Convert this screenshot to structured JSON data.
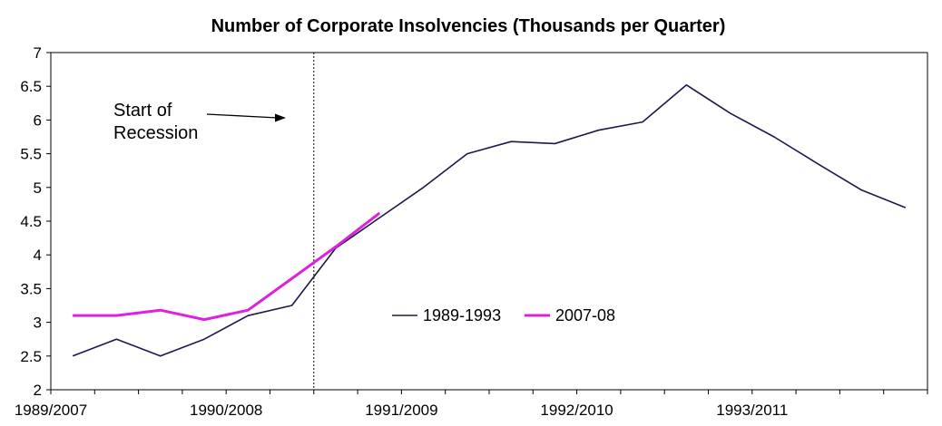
{
  "chart_data": {
    "type": "line",
    "title": "Number of Corporate Insolvencies (Thousands per Quarter)",
    "xlabel": "",
    "ylabel": "",
    "ylim": [
      2,
      7
    ],
    "yticks": [
      "2",
      "2.5",
      "3",
      "3.5",
      "4",
      "4.5",
      "5",
      "5.5",
      "6",
      "6.5",
      "7"
    ],
    "xtick_labels": [
      "1989/2007",
      "1990/2008",
      "1991/2009",
      "1992/2010",
      "1993/2011"
    ],
    "quarters": 20,
    "grid": false,
    "legend_position": "center",
    "annotation": {
      "lines": [
        "Start of",
        "Recession"
      ],
      "marker_quarter": 5.5
    },
    "series": [
      {
        "name": "1989-1993",
        "color": "#1a1a4d",
        "values": [
          2.5,
          2.75,
          2.5,
          2.75,
          3.1,
          3.25,
          4.1,
          4.55,
          5.0,
          5.5,
          5.68,
          5.65,
          5.85,
          5.97,
          6.52,
          6.1,
          5.75,
          5.35,
          4.96,
          4.7
        ]
      },
      {
        "name": "2007-08",
        "color": "#e020e0",
        "values": [
          3.1,
          3.1,
          3.18,
          3.04,
          3.18,
          3.65,
          4.12,
          4.62
        ]
      }
    ]
  }
}
